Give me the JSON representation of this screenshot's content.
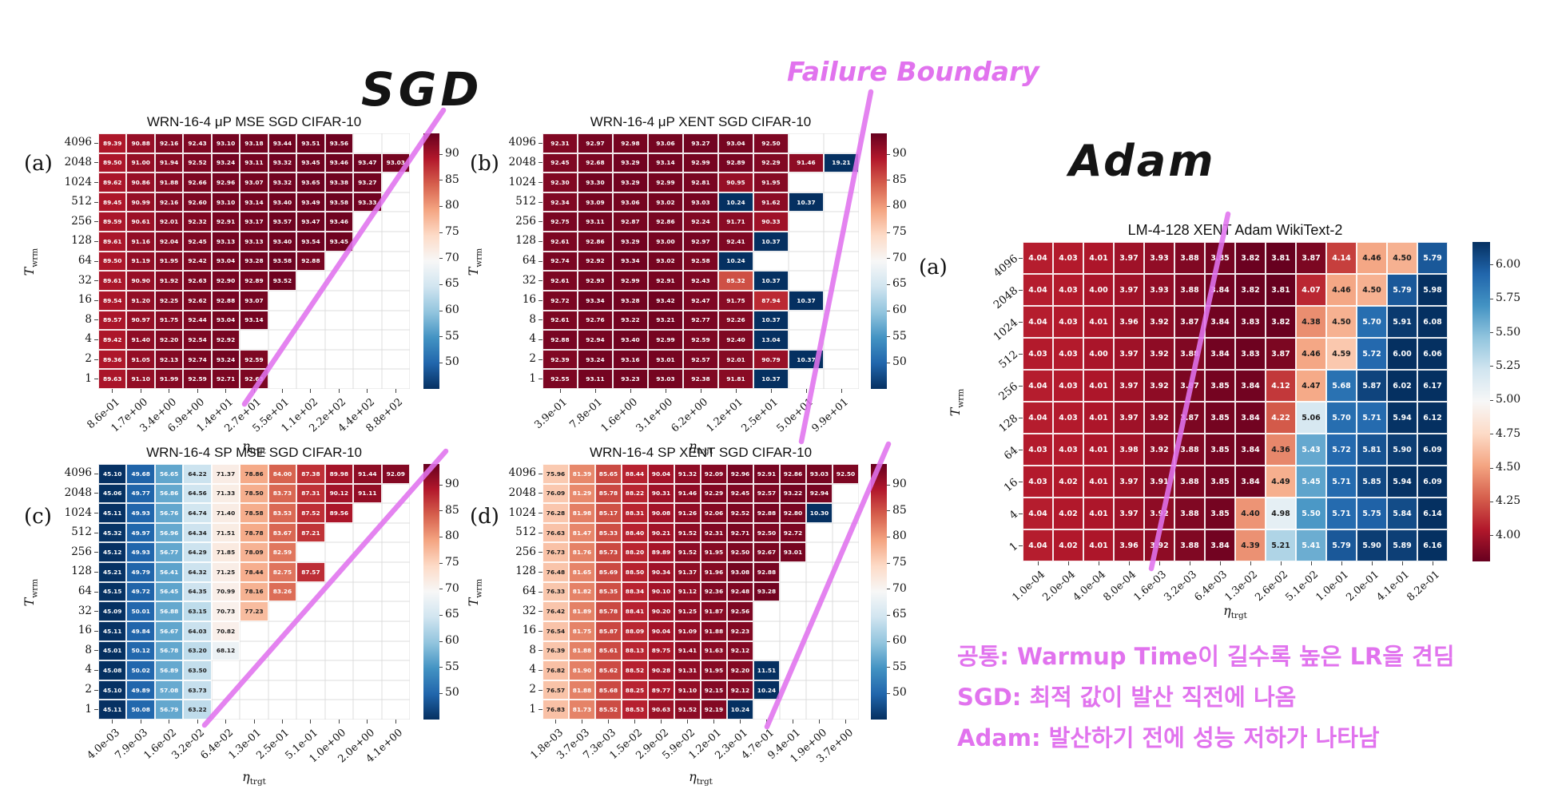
{
  "annotations": {
    "sgd_label": "SGD",
    "adam_label": "Adam",
    "failure_boundary": "Failure Boundary",
    "korean_lines": [
      "공통: Warmup Time이 길수록 높은 LR을 견딤",
      "SGD: 최적 값이 발산 직전에 나옴",
      "Adam: 발산하기 전에 성능 저하가 나타남"
    ]
  },
  "axis": {
    "x_main": "η",
    "x_sub": "trgt",
    "y_main": "T",
    "y_sub": "wrm"
  },
  "colors": {
    "annotation_magenta": "#e173ee",
    "cell_text_light": "#ffffff",
    "cell_text_dark": "#1c1c1c"
  },
  "colorbars": {
    "sgd_ticks": [
      "90",
      "85",
      "80",
      "75",
      "70",
      "65",
      "60",
      "55",
      "50"
    ],
    "adam_ticks": [
      "6.00",
      "5.75",
      "5.50",
      "5.25",
      "5.00",
      "4.75",
      "4.50",
      "4.25",
      "4.00"
    ]
  },
  "chart_data": [
    {
      "id": "a",
      "letter": "(a)",
      "type": "heatmap",
      "palette": "sgd",
      "title": "WRN-16-4 μP MSE SGD CIFAR-10",
      "xlabel": "η_trgt",
      "ylabel": "T_wrm",
      "x_tick_labels": [
        "8.6e-01",
        "1.7e+00",
        "3.4e+00",
        "6.9e+00",
        "1.4e+01",
        "2.7e+01",
        "5.5e+01",
        "1.1e+02",
        "2.2e+02",
        "4.4e+02",
        "8.8e+02"
      ],
      "y_tick_labels": [
        "4096",
        "2048",
        "1024",
        "512",
        "256",
        "128",
        "64",
        "32",
        "16",
        "8",
        "4",
        "2",
        "1"
      ],
      "values": [
        [
          89.39,
          90.88,
          92.16,
          92.43,
          93.1,
          93.18,
          93.44,
          93.51,
          93.56,
          null,
          null
        ],
        [
          89.5,
          91.0,
          91.94,
          92.52,
          93.24,
          93.11,
          93.32,
          93.45,
          93.46,
          93.47,
          93.03
        ],
        [
          89.62,
          90.86,
          91.88,
          92.66,
          92.96,
          93.07,
          93.32,
          93.65,
          93.38,
          93.27,
          null
        ],
        [
          89.45,
          90.99,
          92.16,
          92.6,
          93.1,
          93.14,
          93.4,
          93.49,
          93.58,
          93.33,
          null
        ],
        [
          89.59,
          90.61,
          92.01,
          92.32,
          92.91,
          93.17,
          93.57,
          93.47,
          93.46,
          null,
          null
        ],
        [
          89.61,
          91.16,
          92.04,
          92.45,
          93.13,
          93.13,
          93.4,
          93.54,
          93.45,
          null,
          null
        ],
        [
          89.5,
          91.19,
          91.95,
          92.42,
          93.04,
          93.28,
          93.58,
          92.88,
          null,
          null,
          null
        ],
        [
          89.61,
          90.9,
          91.92,
          92.63,
          92.9,
          92.89,
          93.52,
          null,
          null,
          null,
          null
        ],
        [
          89.54,
          91.2,
          92.25,
          92.62,
          92.88,
          93.07,
          null,
          null,
          null,
          null,
          null
        ],
        [
          89.57,
          90.97,
          91.75,
          92.44,
          93.04,
          93.14,
          null,
          null,
          null,
          null,
          null
        ],
        [
          89.42,
          91.4,
          92.2,
          92.54,
          92.92,
          null,
          null,
          null,
          null,
          null,
          null
        ],
        [
          89.36,
          91.05,
          92.13,
          92.74,
          93.24,
          92.59,
          null,
          null,
          null,
          null,
          null
        ],
        [
          89.63,
          91.1,
          91.99,
          92.59,
          92.71,
          92.63,
          null,
          null,
          null,
          null,
          null
        ]
      ]
    },
    {
      "id": "b",
      "letter": "(b)",
      "type": "heatmap",
      "palette": "sgd",
      "title": "WRN-16-4 μP XENT SGD CIFAR-10",
      "xlabel": "η_trgt",
      "ylabel": "T_wrm",
      "x_tick_labels": [
        "3.9e-01",
        "7.8e-01",
        "1.6e+00",
        "3.1e+00",
        "6.2e+00",
        "1.2e+01",
        "2.5e+01",
        "5.0e+01",
        "9.9e+01"
      ],
      "y_tick_labels": [
        "4096",
        "2048",
        "1024",
        "512",
        "256",
        "128",
        "64",
        "32",
        "16",
        "8",
        "4",
        "2",
        "1"
      ],
      "values": [
        [
          92.31,
          92.97,
          92.98,
          93.06,
          93.27,
          93.04,
          92.5,
          null,
          null
        ],
        [
          92.45,
          92.68,
          93.29,
          93.14,
          92.99,
          92.89,
          92.29,
          91.46,
          19.21
        ],
        [
          92.3,
          93.3,
          93.29,
          92.99,
          92.81,
          90.95,
          91.95,
          null,
          null
        ],
        [
          92.34,
          93.09,
          93.06,
          93.02,
          93.03,
          10.24,
          91.62,
          10.37,
          null
        ],
        [
          92.75,
          93.11,
          92.87,
          92.86,
          92.24,
          91.71,
          90.33,
          null,
          null
        ],
        [
          92.61,
          92.86,
          93.29,
          93.0,
          92.97,
          92.41,
          10.37,
          null,
          null
        ],
        [
          92.74,
          92.92,
          93.34,
          93.02,
          92.58,
          10.24,
          null,
          null,
          null
        ],
        [
          92.61,
          92.93,
          92.99,
          92.91,
          92.43,
          85.32,
          10.37,
          null,
          null
        ],
        [
          92.72,
          93.34,
          93.28,
          93.42,
          92.47,
          91.75,
          87.94,
          10.37,
          null
        ],
        [
          92.61,
          92.76,
          93.22,
          93.21,
          92.77,
          92.26,
          10.37,
          null,
          null
        ],
        [
          92.88,
          92.94,
          93.4,
          92.99,
          92.59,
          92.4,
          13.04,
          null,
          null
        ],
        [
          92.39,
          93.24,
          93.16,
          93.01,
          92.57,
          92.01,
          90.79,
          10.37,
          null
        ],
        [
          92.55,
          93.11,
          93.23,
          93.03,
          92.38,
          91.81,
          10.37,
          null,
          null
        ]
      ]
    },
    {
      "id": "c",
      "letter": "(c)",
      "type": "heatmap",
      "palette": "sgd",
      "title": "WRN-16-4 SP MSE SGD CIFAR-10",
      "xlabel": "η_trgt",
      "ylabel": "T_wrm",
      "x_tick_labels": [
        "4.0e-03",
        "7.9e-03",
        "1.6e-02",
        "3.2e-02",
        "6.4e-02",
        "1.3e-01",
        "2.5e-01",
        "5.1e-01",
        "1.0e+00",
        "2.0e+00",
        "4.1e+00"
      ],
      "y_tick_labels": [
        "4096",
        "2048",
        "1024",
        "512",
        "256",
        "128",
        "64",
        "32",
        "16",
        "8",
        "4",
        "2",
        "1"
      ],
      "values": [
        [
          45.1,
          49.68,
          56.65,
          64.22,
          71.37,
          78.86,
          84.0,
          87.38,
          89.98,
          91.44,
          92.09
        ],
        [
          45.06,
          49.77,
          56.86,
          64.56,
          71.33,
          78.5,
          83.73,
          87.31,
          90.12,
          91.11,
          null
        ],
        [
          45.11,
          49.93,
          56.76,
          64.74,
          71.4,
          78.58,
          83.53,
          87.52,
          89.56,
          null,
          null
        ],
        [
          45.32,
          49.97,
          56.96,
          64.34,
          71.51,
          78.78,
          83.67,
          87.21,
          null,
          null,
          null
        ],
        [
          45.12,
          49.93,
          56.77,
          64.29,
          71.85,
          78.09,
          82.59,
          null,
          null,
          null,
          null
        ],
        [
          45.21,
          49.79,
          56.41,
          64.32,
          71.25,
          78.44,
          82.75,
          87.57,
          null,
          null,
          null
        ],
        [
          45.15,
          49.72,
          56.45,
          64.35,
          70.99,
          78.16,
          83.26,
          null,
          null,
          null,
          null
        ],
        [
          45.09,
          50.01,
          56.88,
          63.15,
          70.73,
          77.23,
          null,
          null,
          null,
          null,
          null
        ],
        [
          45.11,
          49.84,
          56.67,
          64.03,
          70.82,
          null,
          null,
          null,
          null,
          null,
          null
        ],
        [
          45.01,
          50.12,
          56.78,
          63.2,
          68.12,
          null,
          null,
          null,
          null,
          null,
          null
        ],
        [
          45.08,
          50.02,
          56.89,
          63.5,
          null,
          null,
          null,
          null,
          null,
          null,
          null
        ],
        [
          45.1,
          49.89,
          57.08,
          63.73,
          null,
          null,
          null,
          null,
          null,
          null,
          null
        ],
        [
          45.11,
          50.08,
          56.79,
          63.22,
          null,
          null,
          null,
          null,
          null,
          null,
          null
        ]
      ]
    },
    {
      "id": "d",
      "letter": "(d)",
      "type": "heatmap",
      "palette": "sgd",
      "title": "WRN-16-4 SP XENT SGD CIFAR-10",
      "xlabel": "η_trgt",
      "ylabel": "T_wrm",
      "x_tick_labels": [
        "1.8e-03",
        "3.7e-03",
        "7.3e-03",
        "1.5e-02",
        "2.9e-02",
        "5.9e-02",
        "1.2e-01",
        "2.3e-01",
        "4.7e-01",
        "9.4e-01",
        "1.9e+00",
        "3.7e+00"
      ],
      "y_tick_labels": [
        "4096",
        "2048",
        "1024",
        "512",
        "256",
        "128",
        "64",
        "32",
        "16",
        "8",
        "4",
        "2",
        "1"
      ],
      "values": [
        [
          75.96,
          81.39,
          85.65,
          88.44,
          90.04,
          91.32,
          92.09,
          92.96,
          92.91,
          92.86,
          93.03,
          92.5
        ],
        [
          76.09,
          81.29,
          85.78,
          88.22,
          90.31,
          91.46,
          92.29,
          92.45,
          92.57,
          93.22,
          92.94,
          null
        ],
        [
          76.28,
          81.98,
          85.17,
          88.31,
          90.08,
          91.26,
          92.06,
          92.52,
          92.88,
          92.8,
          10.3,
          null
        ],
        [
          76.63,
          81.47,
          85.33,
          88.4,
          90.21,
          91.52,
          92.31,
          92.71,
          92.5,
          92.72,
          null,
          null
        ],
        [
          76.73,
          81.76,
          85.73,
          88.2,
          89.89,
          91.52,
          91.95,
          92.5,
          92.67,
          93.01,
          null,
          null
        ],
        [
          76.48,
          81.65,
          85.69,
          88.5,
          90.34,
          91.37,
          91.96,
          93.08,
          92.88,
          null,
          null,
          null
        ],
        [
          76.33,
          81.82,
          85.35,
          88.34,
          90.1,
          91.12,
          92.36,
          92.48,
          93.28,
          null,
          null,
          null
        ],
        [
          76.42,
          81.89,
          85.78,
          88.41,
          90.2,
          91.25,
          91.87,
          92.56,
          null,
          null,
          null,
          null
        ],
        [
          76.54,
          81.75,
          85.87,
          88.09,
          90.04,
          91.09,
          91.88,
          92.23,
          null,
          null,
          null,
          null
        ],
        [
          76.39,
          81.88,
          85.61,
          88.13,
          89.75,
          91.41,
          91.63,
          92.12,
          null,
          null,
          null,
          null
        ],
        [
          76.82,
          81.9,
          85.62,
          88.52,
          90.28,
          91.31,
          91.95,
          92.2,
          11.51,
          null,
          null,
          null
        ],
        [
          76.57,
          81.88,
          85.68,
          88.25,
          89.77,
          91.1,
          92.15,
          92.12,
          10.24,
          null,
          null,
          null
        ],
        [
          76.83,
          81.73,
          85.52,
          88.53,
          90.63,
          91.52,
          92.19,
          10.24,
          null,
          null,
          null,
          null
        ]
      ]
    },
    {
      "id": "adam",
      "letter": "(a)",
      "type": "heatmap",
      "palette": "adam",
      "title": "LM-4-128 XENT Adam WikiText-2",
      "xlabel": "η_trgt",
      "ylabel": "T_wrm",
      "x_tick_labels": [
        "1.0e-04",
        "2.0e-04",
        "4.0e-04",
        "8.0e-04",
        "1.6e-03",
        "3.2e-03",
        "6.4e-03",
        "1.3e-02",
        "2.6e-02",
        "5.1e-02",
        "1.0e-01",
        "2.0e-01",
        "4.1e-01",
        "8.2e-01"
      ],
      "y_tick_labels": [
        "4096",
        "2048",
        "1024",
        "512",
        "256",
        "128",
        "64",
        "16",
        "4",
        "1"
      ],
      "values": [
        [
          4.04,
          4.03,
          4.01,
          3.97,
          3.93,
          3.88,
          3.85,
          3.82,
          3.81,
          3.87,
          4.14,
          4.46,
          4.5,
          5.79
        ],
        [
          4.04,
          4.03,
          4.0,
          3.97,
          3.93,
          3.88,
          3.84,
          3.82,
          3.81,
          4.07,
          4.46,
          4.5,
          5.79,
          5.98
        ],
        [
          4.04,
          4.03,
          4.01,
          3.96,
          3.92,
          3.87,
          3.84,
          3.83,
          3.82,
          4.38,
          4.5,
          5.7,
          5.91,
          6.08
        ],
        [
          4.03,
          4.03,
          4.0,
          3.97,
          3.92,
          3.88,
          3.84,
          3.83,
          3.87,
          4.46,
          4.59,
          5.72,
          6.0,
          6.06
        ],
        [
          4.04,
          4.03,
          4.01,
          3.97,
          3.92,
          3.87,
          3.85,
          3.84,
          4.12,
          4.47,
          5.68,
          5.87,
          6.02,
          6.17
        ],
        [
          4.04,
          4.03,
          4.01,
          3.97,
          3.92,
          3.87,
          3.85,
          3.84,
          4.22,
          5.06,
          5.7,
          5.71,
          5.94,
          6.12
        ],
        [
          4.03,
          4.03,
          4.01,
          3.98,
          3.92,
          3.88,
          3.85,
          3.84,
          4.36,
          5.43,
          5.72,
          5.81,
          5.9,
          6.09
        ],
        [
          4.03,
          4.02,
          4.01,
          3.97,
          3.91,
          3.88,
          3.85,
          3.84,
          4.49,
          5.45,
          5.71,
          5.85,
          5.94,
          6.09
        ],
        [
          4.04,
          4.02,
          4.01,
          3.97,
          3.92,
          3.88,
          3.85,
          4.4,
          4.98,
          5.5,
          5.71,
          5.75,
          5.84,
          6.14
        ],
        [
          4.04,
          4.02,
          4.01,
          3.96,
          3.92,
          3.88,
          3.84,
          4.39,
          5.21,
          5.41,
          5.79,
          5.9,
          5.89,
          6.16
        ]
      ]
    }
  ]
}
